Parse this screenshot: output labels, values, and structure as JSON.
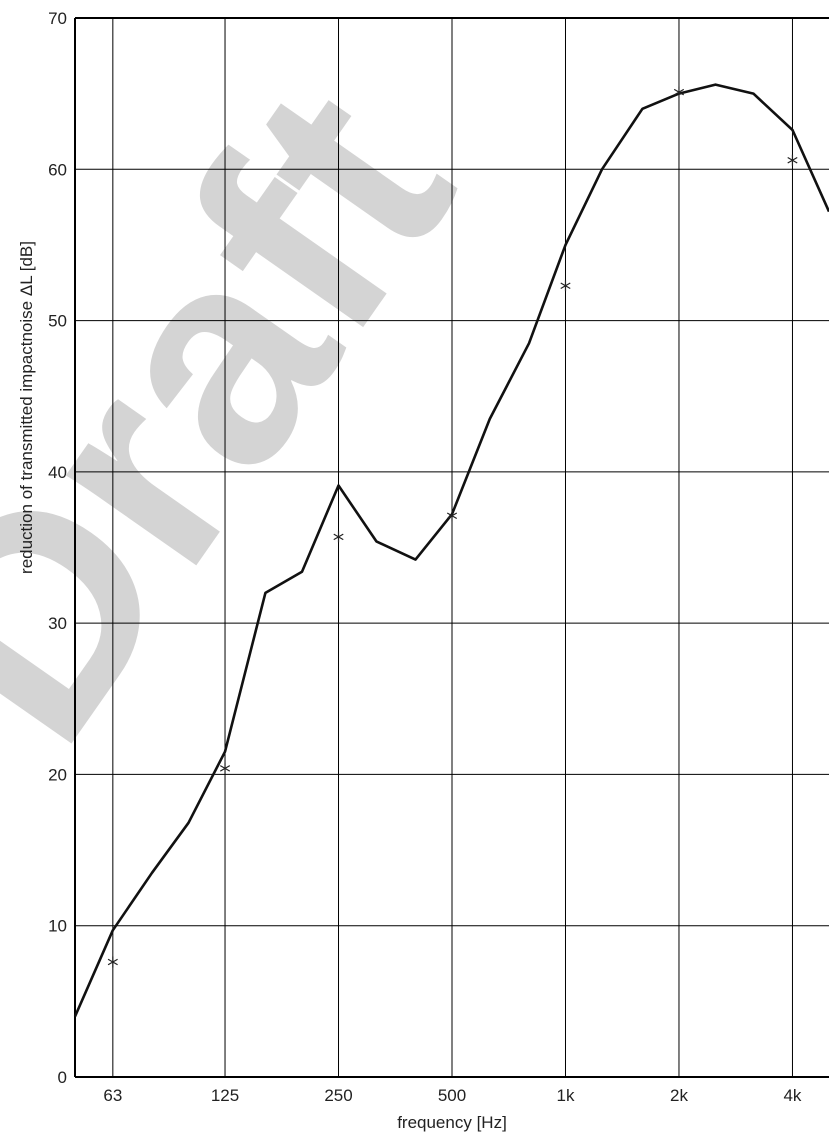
{
  "chart_data": {
    "type": "line",
    "xlabel": "frequency [Hz]",
    "ylabel": "reduction of transmitted impactnoise ΔL [dB]",
    "watermark": "Draft",
    "x_scale": "log",
    "x_ticks": [
      {
        "value": 63,
        "label": "63"
      },
      {
        "value": 125,
        "label": "125"
      },
      {
        "value": 250,
        "label": "250"
      },
      {
        "value": 500,
        "label": "500"
      },
      {
        "value": 1000,
        "label": "1k"
      },
      {
        "value": 2000,
        "label": "2k"
      },
      {
        "value": 4000,
        "label": "4k"
      }
    ],
    "xlim": [
      50,
      5000
    ],
    "ylim": [
      0,
      70
    ],
    "y_ticks": [
      0,
      10,
      20,
      30,
      40,
      50,
      60,
      70
    ],
    "grid": true,
    "series": [
      {
        "style": "solid-line",
        "color": "#111111",
        "x": [
          50,
          63,
          80,
          100,
          125,
          160,
          200,
          250,
          315,
          400,
          500,
          630,
          800,
          1000,
          1250,
          1600,
          2000,
          2500,
          3150,
          4000,
          5000
        ],
        "y": [
          4,
          9.7,
          13.5,
          16.8,
          21.5,
          32,
          33.4,
          39.1,
          35.4,
          34.2,
          37.2,
          43.5,
          48.5,
          55,
          60,
          64,
          65,
          65.6,
          65,
          62.6,
          57.2
        ]
      },
      {
        "style": "star-markers",
        "color": "#222222",
        "x": [
          63,
          125,
          250,
          500,
          1000,
          2000,
          4000
        ],
        "y": [
          7.6,
          20.4,
          35.7,
          37.1,
          52.3,
          65.1,
          60.6
        ]
      }
    ]
  }
}
